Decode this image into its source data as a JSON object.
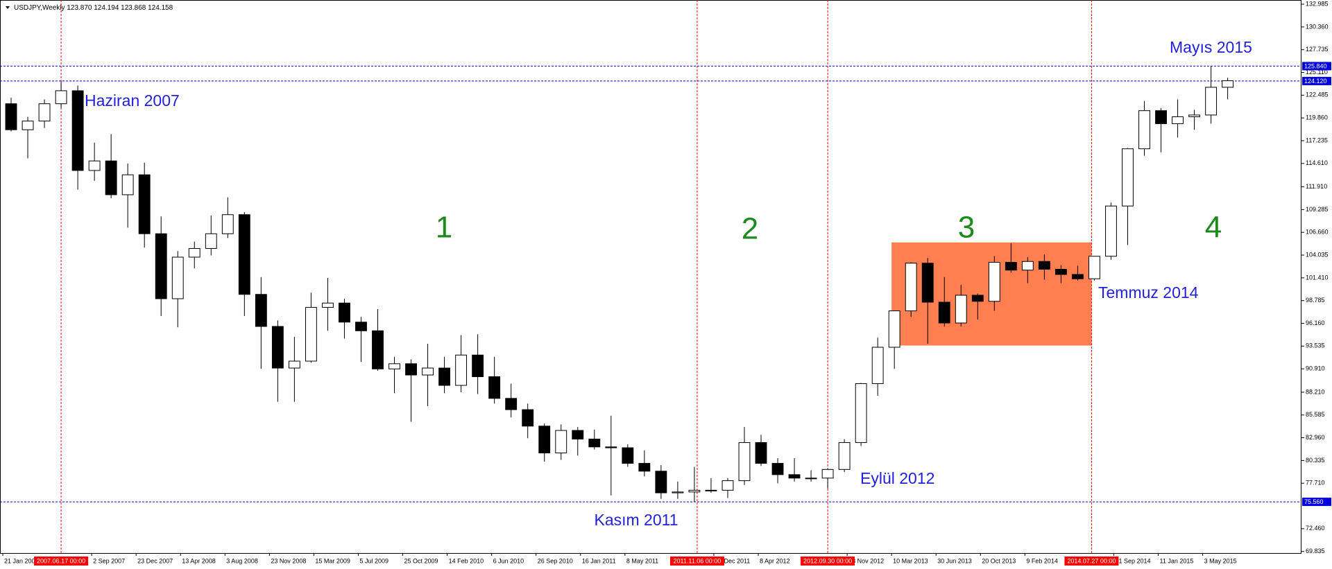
{
  "chart_data": {
    "type": "candlestick",
    "title": "USDJPY,Weekly  123.870 124.194 123.868 124.158",
    "x": [
      "2007-01-21",
      "2007-03-04",
      "2007-04-15",
      "2007-05-27",
      "2007-07-08",
      "2007-08-19",
      "2007-09-30",
      "2007-11-11",
      "2007-12-23",
      "2008-02-03",
      "2008-03-16",
      "2008-04-27",
      "2008-06-08",
      "2008-07-20",
      "2008-08-31",
      "2008-10-12",
      "2008-11-23",
      "2009-01-04",
      "2009-02-15",
      "2009-03-29",
      "2009-05-10",
      "2009-06-21",
      "2009-08-02",
      "2009-09-13",
      "2009-10-25",
      "2009-12-06",
      "2010-01-17",
      "2010-02-28",
      "2010-04-11",
      "2010-05-23",
      "2010-07-04",
      "2010-08-15",
      "2010-09-26",
      "2010-11-07",
      "2010-12-19",
      "2011-01-30",
      "2011-03-13",
      "2011-04-24",
      "2011-06-05",
      "2011-07-17",
      "2011-08-28",
      "2011-10-09",
      "2011-11-20",
      "2012-01-01",
      "2012-02-12",
      "2012-03-25",
      "2012-05-06",
      "2012-06-17",
      "2012-07-29",
      "2012-09-09",
      "2012-10-21",
      "2012-12-02",
      "2013-01-13",
      "2013-02-24",
      "2013-04-07",
      "2013-05-19",
      "2013-06-30",
      "2013-08-11",
      "2013-09-22",
      "2013-11-03",
      "2013-12-15",
      "2014-01-26",
      "2014-03-09",
      "2014-04-20",
      "2014-06-01",
      "2014-07-13",
      "2014-08-24",
      "2014-10-05",
      "2014-11-16",
      "2014-12-28",
      "2015-02-08",
      "2015-03-22",
      "2015-05-03",
      "2015-06-14"
    ],
    "open": [
      121.5,
      118.5,
      119.5,
      121.5,
      123.0,
      113.8,
      114.9,
      111.0,
      113.3,
      106.5,
      99.0,
      103.8,
      104.8,
      106.5,
      108.7,
      99.5,
      95.8,
      91.0,
      91.8,
      98.0,
      98.5,
      96.3,
      95.3,
      90.9,
      91.5,
      90.2,
      91.0,
      89.0,
      92.5,
      90.0,
      87.5,
      86.2,
      84.3,
      81.2,
      83.8,
      82.8,
      81.9,
      81.8,
      80.0,
      79.1,
      76.6,
      76.7,
      76.9,
      76.9,
      78.0,
      82.4,
      80.0,
      78.7,
      78.3,
      78.3,
      79.3,
      82.4,
      89.2,
      93.4,
      97.6,
      103.1,
      98.6,
      96.2,
      99.4,
      98.7,
      103.2,
      102.3,
      103.3,
      102.4,
      101.8,
      101.3,
      103.9,
      109.7,
      116.3,
      120.7,
      119.2,
      120.0,
      120.2,
      123.4
    ],
    "high": [
      122.2,
      120.0,
      122.0,
      124.1,
      123.6,
      117.0,
      118.0,
      114.6,
      114.7,
      108.5,
      104.5,
      105.6,
      108.6,
      110.7,
      109.0,
      101.5,
      96.5,
      94.6,
      99.7,
      101.4,
      99.0,
      96.9,
      97.8,
      92.3,
      92.0,
      93.8,
      92.3,
      94.8,
      94.9,
      92.3,
      89.2,
      86.9,
      84.6,
      84.5,
      84.2,
      83.9,
      85.5,
      82.2,
      81.5,
      79.8,
      77.9,
      79.6,
      78.3,
      78.3,
      84.2,
      83.3,
      80.6,
      80.6,
      79.2,
      79.4,
      82.8,
      89.3,
      94.5,
      97.6,
      103.2,
      103.7,
      101.5,
      100.6,
      99.6,
      103.9,
      105.4,
      103.8,
      104.1,
      102.9,
      102.8,
      103.9,
      110.1,
      116.4,
      121.8,
      121.0,
      122.0,
      120.8,
      125.86,
      124.5
    ],
    "low": [
      118.3,
      115.2,
      118.7,
      121.0,
      111.6,
      112.6,
      110.6,
      107.2,
      104.9,
      97.0,
      95.7,
      102.5,
      104.0,
      106.0,
      97.0,
      90.9,
      87.1,
      87.1,
      91.6,
      95.3,
      94.4,
      91.7,
      90.7,
      88.1,
      84.8,
      86.6,
      88.1,
      88.2,
      88.0,
      86.9,
      85.3,
      82.9,
      80.2,
      80.4,
      80.9,
      81.6,
      76.3,
      79.6,
      78.5,
      75.9,
      75.9,
      75.56,
      76.6,
      76.0,
      77.5,
      79.7,
      77.7,
      77.9,
      77.9,
      77.1,
      79.0,
      82.0,
      87.8,
      90.9,
      96.9,
      93.8,
      95.8,
      95.8,
      96.6,
      97.6,
      102.0,
      100.8,
      101.2,
      100.8,
      101.1,
      101.1,
      103.5,
      105.2,
      115.5,
      115.9,
      117.6,
      118.5,
      119.2,
      122.0
    ],
    "close": [
      118.5,
      119.5,
      121.5,
      123.0,
      113.8,
      114.9,
      111.0,
      113.3,
      106.5,
      99.0,
      103.8,
      104.8,
      106.5,
      108.7,
      99.5,
      95.8,
      91.0,
      91.8,
      98.0,
      98.5,
      96.3,
      95.3,
      90.9,
      91.5,
      90.2,
      91.0,
      89.0,
      92.5,
      90.0,
      87.5,
      86.2,
      84.3,
      81.2,
      83.8,
      82.8,
      81.9,
      81.8,
      80.0,
      79.1,
      76.6,
      76.7,
      76.9,
      76.9,
      78.0,
      82.4,
      80.0,
      78.7,
      78.3,
      78.3,
      79.3,
      82.4,
      89.2,
      93.4,
      97.6,
      103.1,
      98.6,
      96.2,
      99.4,
      98.7,
      103.2,
      102.3,
      103.3,
      102.4,
      101.8,
      101.3,
      103.9,
      109.7,
      116.3,
      120.7,
      119.2,
      120.0,
      120.2,
      123.4,
      124.16
    ],
    "up_color": "#ffffff",
    "down_color": "#000000",
    "line_color": "#000000",
    "xlim": [
      "2007-01-14",
      "2016-01-07"
    ],
    "ylim": [
      69.65,
      133.47
    ],
    "yticks": [
      {
        "value": 132.985,
        "label": "132.985"
      },
      {
        "value": 130.36,
        "label": "130.360"
      },
      {
        "value": 127.735,
        "label": "127.735"
      },
      {
        "value": 125.11,
        "label": "125.110"
      },
      {
        "value": 122.485,
        "label": "122.485"
      },
      {
        "value": 119.86,
        "label": "119.860"
      },
      {
        "value": 117.235,
        "label": "117.235"
      },
      {
        "value": 114.61,
        "label": "114.610"
      },
      {
        "value": 111.91,
        "label": "111.910"
      },
      {
        "value": 109.285,
        "label": "109.285"
      },
      {
        "value": 106.66,
        "label": "106.660"
      },
      {
        "value": 104.035,
        "label": "104.035"
      },
      {
        "value": 101.41,
        "label": "101.410"
      },
      {
        "value": 98.785,
        "label": "98.785"
      },
      {
        "value": 96.16,
        "label": "96.160"
      },
      {
        "value": 93.535,
        "label": "93.535"
      },
      {
        "value": 90.91,
        "label": "90.910"
      },
      {
        "value": 88.21,
        "label": "88.210"
      },
      {
        "value": 85.585,
        "label": "85.585"
      },
      {
        "value": 82.96,
        "label": "82.960"
      },
      {
        "value": 80.335,
        "label": "80.335"
      },
      {
        "value": 77.71,
        "label": "77.710"
      },
      {
        "value": 72.46,
        "label": "72.460"
      },
      {
        "value": 69.835,
        "label": "69.835"
      }
    ],
    "xticks": [
      {
        "value": "2007-01-21",
        "label": "21 Jan 2007"
      },
      {
        "value": "2007-09-02",
        "label": "2 Sep 2007"
      },
      {
        "value": "2007-12-23",
        "label": "23 Dec 2007"
      },
      {
        "value": "2008-04-13",
        "label": "13 Apr 2008"
      },
      {
        "value": "2008-08-03",
        "label": "3 Aug 2008"
      },
      {
        "value": "2008-11-23",
        "label": "23 Nov 2008"
      },
      {
        "value": "2009-03-15",
        "label": "15 Mar 2009"
      },
      {
        "value": "2009-07-05",
        "label": "5 Jul 2009"
      },
      {
        "value": "2009-10-25",
        "label": "25 Oct 2009"
      },
      {
        "value": "2010-02-14",
        "label": "14 Feb 2010"
      },
      {
        "value": "2010-06-06",
        "label": "6 Jun 2010"
      },
      {
        "value": "2010-09-26",
        "label": "26 Sep 2010"
      },
      {
        "value": "2011-01-16",
        "label": "16 Jan 2011"
      },
      {
        "value": "2011-05-08",
        "label": "8 May 2011"
      },
      {
        "value": "2011-12-18",
        "label": "18 Dec 2011"
      },
      {
        "value": "2012-04-08",
        "label": "8 Apr 2012"
      },
      {
        "value": "2012-11-18",
        "label": "18 Nov 2012"
      },
      {
        "value": "2013-03-10",
        "label": "10 Mar 2013"
      },
      {
        "value": "2013-06-30",
        "label": "30 Jun 2013"
      },
      {
        "value": "2013-10-20",
        "label": "20 Oct 2013"
      },
      {
        "value": "2014-02-09",
        "label": "9 Feb 2014"
      },
      {
        "value": "2014-09-21",
        "label": "21 Sep 2014"
      },
      {
        "value": "2015-01-11",
        "label": "11 Jan 2015"
      },
      {
        "value": "2015-05-03",
        "label": "3 May 2015"
      }
    ],
    "vlines": [
      {
        "x": "2007-06-17",
        "label": "2007.06.17 00:00"
      },
      {
        "x": "2011-11-06",
        "label": "2011.11.06 00:00"
      },
      {
        "x": "2012-09-30",
        "label": "2012.09.30 00:00"
      },
      {
        "x": "2014-07-27",
        "label": "2014.07.27 00:00"
      }
    ],
    "vline_color": "#ff0000",
    "hlines": [
      {
        "value": 125.84,
        "label": "125.840"
      },
      {
        "value": 124.12,
        "label": "124.120"
      },
      {
        "value": 75.56,
        "label": "75.560"
      }
    ],
    "hline_color": "#0000e0",
    "zone": {
      "x0": "2013-03-10",
      "x1": "2014-07-27",
      "y0": 93.6,
      "y1": 105.5,
      "color": "#ff7f50"
    },
    "annotations": [
      "Haziran 2007",
      "Kasım 2011",
      "Eylül 2012",
      "Temmuz 2014",
      "Mayıs 2015"
    ],
    "phases": [
      "1",
      "2",
      "3",
      "4"
    ]
  }
}
